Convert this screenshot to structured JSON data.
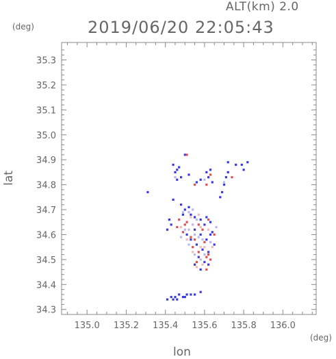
{
  "header": {
    "altitude_label": "ALT(km) 2.0",
    "datetime": "2019/06/20 22:05:43"
  },
  "axes": {
    "y_unit": "(deg)",
    "x_unit": "(deg)",
    "x_label": "lon",
    "y_label": "lat"
  },
  "chart_data": {
    "type": "scatter",
    "title": "2019/06/20 22:05:43",
    "subtitle": "ALT(km) 2.0",
    "xlabel": "lon",
    "ylabel": "lat",
    "xlim": [
      134.87,
      136.17
    ],
    "ylim": [
      34.28,
      35.37
    ],
    "x_ticks": [
      "135.0",
      "135.2",
      "135.4",
      "135.6",
      "135.8",
      "136.0"
    ],
    "y_ticks": [
      "34.3",
      "34.4",
      "34.5",
      "34.6",
      "34.7",
      "34.8",
      "34.9",
      "35.0",
      "35.1",
      "35.2",
      "35.3"
    ],
    "series": [
      {
        "color": "#3a3ae0",
        "points": [
          [
            135.5,
            34.92
          ],
          [
            135.44,
            34.88
          ],
          [
            135.46,
            34.86
          ],
          [
            135.47,
            34.87
          ],
          [
            135.45,
            34.85
          ],
          [
            135.48,
            34.83
          ],
          [
            135.46,
            34.82
          ],
          [
            135.52,
            34.84
          ],
          [
            135.56,
            34.81
          ],
          [
            135.58,
            34.82
          ],
          [
            135.61,
            34.85
          ],
          [
            135.62,
            34.83
          ],
          [
            135.63,
            34.86
          ],
          [
            135.64,
            34.81
          ],
          [
            135.7,
            34.8
          ],
          [
            135.71,
            34.83
          ],
          [
            135.72,
            34.85
          ],
          [
            135.69,
            34.77
          ],
          [
            135.68,
            34.75
          ],
          [
            135.72,
            34.89
          ],
          [
            135.76,
            34.88
          ],
          [
            135.79,
            34.88
          ],
          [
            135.82,
            34.89
          ],
          [
            135.8,
            34.86
          ],
          [
            135.31,
            34.77
          ],
          [
            135.44,
            34.74
          ],
          [
            135.48,
            34.72
          ],
          [
            135.5,
            34.7
          ],
          [
            135.52,
            34.71
          ],
          [
            135.49,
            34.68
          ],
          [
            135.53,
            34.68
          ],
          [
            135.55,
            34.67
          ],
          [
            135.58,
            34.66
          ],
          [
            135.61,
            34.67
          ],
          [
            135.63,
            34.65
          ],
          [
            135.6,
            34.64
          ],
          [
            135.42,
            34.66
          ],
          [
            135.43,
            34.64
          ],
          [
            135.41,
            34.62
          ],
          [
            135.55,
            34.62
          ],
          [
            135.58,
            34.6
          ],
          [
            135.61,
            34.58
          ],
          [
            135.63,
            34.6
          ],
          [
            135.56,
            34.56
          ],
          [
            135.59,
            34.54
          ],
          [
            135.62,
            34.53
          ],
          [
            135.57,
            34.51
          ],
          [
            135.6,
            34.49
          ],
          [
            135.62,
            34.48
          ],
          [
            135.55,
            34.48
          ],
          [
            135.58,
            34.46
          ],
          [
            135.64,
            34.61
          ],
          [
            135.65,
            34.56
          ],
          [
            135.53,
            34.58
          ],
          [
            135.51,
            34.6
          ],
          [
            135.41,
            34.34
          ],
          [
            135.43,
            34.35
          ],
          [
            135.45,
            34.35
          ],
          [
            135.47,
            34.36
          ],
          [
            135.49,
            34.35
          ],
          [
            135.51,
            34.36
          ],
          [
            135.53,
            34.36
          ],
          [
            135.55,
            34.36
          ],
          [
            135.58,
            34.37
          ],
          [
            135.44,
            34.34
          ],
          [
            135.46,
            34.34
          ],
          [
            135.5,
            34.35
          ]
        ]
      },
      {
        "color": "#e05050",
        "points": [
          [
            135.51,
            34.92
          ],
          [
            135.55,
            34.8
          ],
          [
            135.63,
            34.84
          ],
          [
            135.74,
            34.83
          ],
          [
            135.61,
            34.8
          ],
          [
            135.47,
            34.66
          ],
          [
            135.51,
            34.65
          ],
          [
            135.57,
            34.64
          ],
          [
            135.46,
            34.63
          ],
          [
            135.49,
            34.61
          ],
          [
            135.53,
            34.59
          ],
          [
            135.59,
            34.62
          ],
          [
            135.55,
            34.58
          ],
          [
            135.6,
            34.57
          ],
          [
            135.54,
            34.55
          ],
          [
            135.57,
            34.53
          ],
          [
            135.61,
            34.51
          ],
          [
            135.63,
            34.5
          ],
          [
            135.56,
            34.49
          ],
          [
            135.61,
            34.46
          ],
          [
            135.62,
            34.52
          ],
          [
            135.65,
            34.6
          ],
          [
            135.62,
            34.66
          ],
          [
            135.5,
            34.64
          ]
        ]
      },
      {
        "color": "#b8b8f0",
        "points": [
          [
            135.49,
            34.69
          ],
          [
            135.52,
            34.69
          ],
          [
            135.54,
            34.64
          ],
          [
            135.56,
            34.66
          ],
          [
            135.5,
            34.62
          ],
          [
            135.52,
            34.62
          ],
          [
            135.55,
            34.6
          ],
          [
            135.57,
            34.59
          ],
          [
            135.59,
            34.58
          ],
          [
            135.55,
            34.52
          ],
          [
            135.58,
            34.5
          ],
          [
            135.6,
            34.52
          ],
          [
            135.63,
            34.57
          ],
          [
            135.52,
            34.56
          ],
          [
            135.48,
            34.59
          ],
          [
            135.66,
            34.63
          ],
          [
            135.7,
            34.81
          ],
          [
            135.45,
            34.83
          ],
          [
            135.6,
            34.82
          ],
          [
            135.54,
            34.7
          ]
        ]
      },
      {
        "color": "#f3b8b8",
        "points": [
          [
            135.53,
            34.67
          ],
          [
            135.58,
            34.63
          ],
          [
            135.51,
            34.58
          ],
          [
            135.58,
            34.55
          ],
          [
            135.54,
            34.53
          ],
          [
            135.6,
            34.55
          ],
          [
            135.62,
            34.62
          ],
          [
            135.48,
            34.63
          ],
          [
            135.56,
            34.47
          ],
          [
            135.59,
            34.48
          ],
          [
            135.64,
            34.55
          ],
          [
            135.57,
            34.68
          ]
        ]
      }
    ]
  }
}
